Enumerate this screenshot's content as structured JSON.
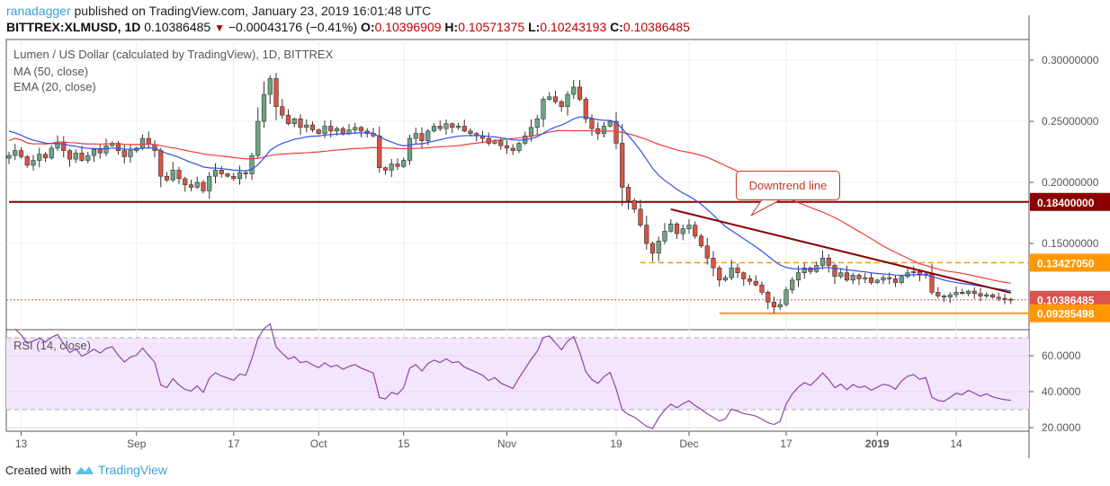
{
  "header": {
    "user": "ranadagger",
    "published": "published on TradingView.com, January 23, 2019 16:01:48 UTC",
    "symbol": "BITTREX:XLMUSD, 1D",
    "last": "0.10386485",
    "change": "−0.00043176 (−0.41%)",
    "o_label": "O:",
    "o": "0.10396909",
    "h_label": "H:",
    "h": "0.10571375",
    "l_label": "L:",
    "l": "0.10243193",
    "c_label": "C:",
    "c": "0.10386485"
  },
  "legend": {
    "title": "Lumen / US Dollar (calculated by TradingView), 1D, BITTREX",
    "ma": "MA (50, close)",
    "ema": "EMA (20, close)",
    "rsi": "RSI (14, close)"
  },
  "annotation": {
    "text": "Downtrend line"
  },
  "footer": {
    "created": "Created with",
    "brand": "TradingView"
  },
  "colors": {
    "up": "#6ba583",
    "down": "#d75442",
    "ma": "#f23b3b",
    "ema": "#3050f0",
    "rsi": "#8e44ad",
    "resistance": "#8b0000",
    "support": "#ff9800",
    "trendline": "#8b0000",
    "last_price": "#d9534f"
  },
  "chart_data": {
    "type": "candlestick",
    "start_date": "2018-08-11",
    "closes": [
      0.222,
      0.226,
      0.221,
      0.214,
      0.218,
      0.223,
      0.22,
      0.228,
      0.233,
      0.226,
      0.219,
      0.224,
      0.218,
      0.222,
      0.227,
      0.224,
      0.23,
      0.232,
      0.226,
      0.221,
      0.226,
      0.228,
      0.236,
      0.231,
      0.226,
      0.205,
      0.202,
      0.21,
      0.203,
      0.198,
      0.196,
      0.2,
      0.193,
      0.205,
      0.21,
      0.207,
      0.205,
      0.203,
      0.208,
      0.207,
      0.222,
      0.25,
      0.272,
      0.285,
      0.262,
      0.255,
      0.248,
      0.252,
      0.245,
      0.247,
      0.243,
      0.24,
      0.246,
      0.242,
      0.244,
      0.24,
      0.243,
      0.245,
      0.242,
      0.24,
      0.238,
      0.212,
      0.21,
      0.215,
      0.213,
      0.218,
      0.236,
      0.24,
      0.234,
      0.242,
      0.246,
      0.244,
      0.248,
      0.245,
      0.246,
      0.242,
      0.24,
      0.238,
      0.236,
      0.232,
      0.234,
      0.23,
      0.228,
      0.226,
      0.232,
      0.238,
      0.245,
      0.252,
      0.268,
      0.27,
      0.266,
      0.262,
      0.272,
      0.278,
      0.268,
      0.252,
      0.244,
      0.24,
      0.246,
      0.25,
      0.232,
      0.196,
      0.185,
      0.178,
      0.165,
      0.15,
      0.142,
      0.152,
      0.16,
      0.166,
      0.158,
      0.162,
      0.165,
      0.156,
      0.148,
      0.138,
      0.13,
      0.12,
      0.122,
      0.13,
      0.126,
      0.121,
      0.119,
      0.116,
      0.11,
      0.102,
      0.098,
      0.1,
      0.112,
      0.12,
      0.126,
      0.13,
      0.127,
      0.132,
      0.138,
      0.132,
      0.123,
      0.126,
      0.12,
      0.124,
      0.121,
      0.122,
      0.118,
      0.12,
      0.122,
      0.121,
      0.118,
      0.123,
      0.126,
      0.127,
      0.124,
      0.125,
      0.11,
      0.107,
      0.106,
      0.108,
      0.11,
      0.109,
      0.111,
      0.109,
      0.107,
      0.108,
      0.106,
      0.105,
      0.1043,
      0.10386
    ],
    "price_ylim": [
      0.085,
      0.32
    ],
    "price_ticks": [
      {
        "v": 0.3,
        "label": "0.30000000"
      },
      {
        "v": 0.25,
        "label": "0.25000000"
      },
      {
        "v": 0.2,
        "label": "0.20000000"
      },
      {
        "v": 0.15,
        "label": "0.15000000"
      }
    ],
    "price_labels": [
      {
        "v": 0.184,
        "label": "0.18400000",
        "color": "#8b0000"
      },
      {
        "v": 0.1342705,
        "label": "0.13427050",
        "color": "#ff9800"
      },
      {
        "v": 0.10386485,
        "label": "0.10386485",
        "color": "#d9534f"
      },
      {
        "v": 0.09285498,
        "label": "0.09285498",
        "color": "#ff9800"
      }
    ],
    "horizontal_lines": [
      {
        "v": 0.184,
        "from": "2018-08-11",
        "style": "solid",
        "color": "#8b0000"
      },
      {
        "v": 0.1342705,
        "from": "2018-11-23",
        "style": "dashed",
        "color": "#ff9800"
      },
      {
        "v": 0.09285498,
        "from": "2018-12-06",
        "style": "solid",
        "color": "#ff9800"
      }
    ],
    "trendline": {
      "from": {
        "date": "2018-11-28",
        "v": 0.178
      },
      "to": {
        "date": "2019-01-23",
        "v": 0.1096
      }
    },
    "rsi_ylim": [
      15,
      77
    ],
    "rsi_band": [
      30,
      70
    ],
    "rsi_ticks": [
      {
        "v": 60,
        "label": "60.0000"
      },
      {
        "v": 40,
        "label": "40.0000"
      },
      {
        "v": 20,
        "label": "20.0000"
      }
    ],
    "x_ticks": [
      {
        "date": "2018-08-13",
        "label": "13"
      },
      {
        "date": "2018-09-01",
        "label": "Sep"
      },
      {
        "date": "2018-09-17",
        "label": "17"
      },
      {
        "date": "2018-10-01",
        "label": "Oct"
      },
      {
        "date": "2018-10-15",
        "label": "15"
      },
      {
        "date": "2018-11-01",
        "label": "Nov"
      },
      {
        "date": "2018-11-19",
        "label": "19"
      },
      {
        "date": "2018-12-01",
        "label": "Dec"
      },
      {
        "date": "2018-12-17",
        "label": "17"
      },
      {
        "date": "2019-01-01",
        "label": "2019"
      },
      {
        "date": "2019-01-14",
        "label": "14"
      }
    ]
  }
}
